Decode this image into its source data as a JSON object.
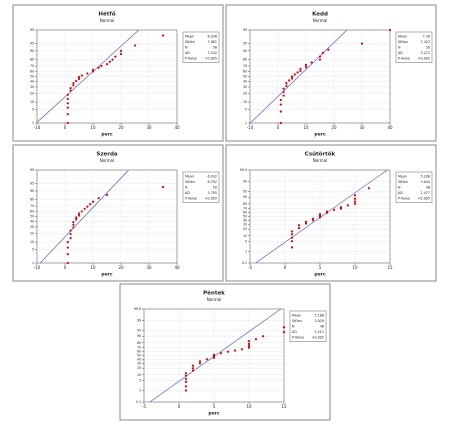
{
  "chart_data": [
    {
      "type": "probability",
      "title": "Hétfő",
      "subtitle": "Normal",
      "x_label": "perc",
      "xlim": [
        -10,
        40
      ],
      "xticks": [
        -10,
        0,
        10,
        20,
        30,
        40
      ],
      "ylim": [
        1,
        99
      ],
      "yticks": [
        1,
        5,
        10,
        20,
        30,
        40,
        50,
        60,
        70,
        80,
        90,
        95,
        99
      ],
      "color": "#e00000",
      "line_color": "#5a5aff",
      "grid": true,
      "x": [
        1,
        1,
        1,
        1,
        1,
        1,
        2,
        2,
        3,
        3,
        4,
        5,
        5,
        6,
        8,
        10,
        10,
        12,
        13,
        15,
        16,
        17,
        18,
        20,
        20,
        25,
        35
      ],
      "values": [
        1,
        3,
        6,
        9,
        13,
        18,
        24,
        28,
        33,
        37,
        41,
        45,
        49,
        52,
        56,
        60,
        63,
        67,
        70,
        73,
        77,
        80,
        84,
        87,
        90,
        94,
        98
      ],
      "stats": [
        {
          "label": "Mean",
          "value": 8.036
        },
        {
          "label": "StDev",
          "value": 7.881
        },
        {
          "label": "N",
          "value": 56
        },
        {
          "label": "AD",
          "value": 3.242
        },
        {
          "label": "P-Value",
          "value": "<0.005"
        }
      ]
    },
    {
      "type": "probability",
      "title": "Kedd",
      "subtitle": "Normal",
      "x_label": "perc",
      "xlim": [
        -10,
        40
      ],
      "xticks": [
        -10,
        0,
        10,
        20,
        30,
        40
      ],
      "ylim": [
        1,
        99
      ],
      "yticks": [
        1,
        5,
        10,
        20,
        30,
        40,
        50,
        60,
        70,
        80,
        90,
        95,
        99
      ],
      "color": "#e00000",
      "line_color": "#5a5aff",
      "grid": true,
      "x": [
        1,
        1,
        1,
        1,
        2,
        2,
        2,
        3,
        3,
        4,
        5,
        5,
        6,
        7,
        8,
        8,
        10,
        10,
        12,
        15,
        15,
        16,
        18,
        30,
        40
      ],
      "values": [
        1,
        4,
        8,
        12,
        17,
        22,
        27,
        32,
        37,
        42,
        46,
        50,
        54,
        58,
        61,
        65,
        68,
        72,
        76,
        80,
        84,
        88,
        91,
        95,
        99
      ],
      "stats": [
        {
          "label": "Mean",
          "value": 7.38
        },
        {
          "label": "StDev",
          "value": 7.423
        },
        {
          "label": "N",
          "value": 50
        },
        {
          "label": "AD",
          "value": 3.272
        },
        {
          "label": "P-Value",
          "value": "<0.005"
        }
      ]
    },
    {
      "type": "probability",
      "title": "Szerda",
      "subtitle": "Normal",
      "x_label": "perc",
      "xlim": [
        -10,
        40
      ],
      "xticks": [
        -10,
        0,
        10,
        20,
        30,
        40
      ],
      "ylim": [
        1,
        99
      ],
      "yticks": [
        1,
        5,
        10,
        20,
        30,
        40,
        50,
        60,
        70,
        80,
        90,
        95,
        99
      ],
      "color": "#e00000",
      "line_color": "#5a5aff",
      "grid": true,
      "x": [
        1,
        1,
        1,
        1,
        2,
        2,
        2,
        3,
        3,
        3,
        4,
        4,
        5,
        5,
        6,
        7,
        8,
        9,
        10,
        12,
        15,
        35
      ],
      "values": [
        1,
        3,
        6,
        10,
        14,
        19,
        24,
        29,
        34,
        39,
        44,
        48,
        52,
        56,
        60,
        65,
        69,
        73,
        77,
        82,
        86,
        93
      ],
      "stats": [
        {
          "label": "Mean",
          "value": 6.932
        },
        {
          "label": "StDev",
          "value": 6.792
        },
        {
          "label": "N",
          "value": 50
        },
        {
          "label": "AD",
          "value": 3.795
        },
        {
          "label": "P-Value",
          "value": "<0.005"
        }
      ]
    },
    {
      "type": "probability",
      "title": "Csütörtök",
      "subtitle": "Normal",
      "x_label": "perc",
      "xlim": [
        -5,
        15
      ],
      "xticks": [
        -5,
        0,
        5,
        10,
        15
      ],
      "ylim": [
        0.1,
        99.9
      ],
      "yticks": [
        0.1,
        1,
        5,
        10,
        20,
        30,
        40,
        50,
        60,
        70,
        80,
        90,
        95,
        99,
        99.9
      ],
      "color": "#e00000",
      "line_color": "#5a5aff",
      "grid": true,
      "x": [
        1,
        1,
        1,
        1,
        1,
        2,
        2,
        3,
        3,
        4,
        4,
        5,
        5,
        5,
        6,
        6,
        7,
        8,
        8,
        9,
        10,
        10,
        10,
        10,
        12
      ],
      "values": [
        2,
        5,
        8,
        12,
        16,
        22,
        28,
        32,
        36,
        40,
        44,
        48,
        52,
        56,
        60,
        63,
        67,
        70,
        73,
        77,
        80,
        84,
        88,
        92,
        97
      ],
      "stats": [
        {
          "label": "Mean",
          "value": 5.208
        },
        {
          "label": "StDev",
          "value": 3.044
        },
        {
          "label": "N",
          "value": 48
        },
        {
          "label": "AD",
          "value": 1.477
        },
        {
          "label": "P-Value",
          "value": "<0.005"
        }
      ]
    },
    {
      "type": "probability",
      "title": "Péntek",
      "subtitle": "Normal",
      "x_label": "perc",
      "xlim": [
        -5,
        15
      ],
      "xticks": [
        -5,
        0,
        5,
        10,
        15
      ],
      "ylim": [
        0.1,
        99.9
      ],
      "yticks": [
        0.1,
        1,
        5,
        10,
        20,
        30,
        40,
        50,
        60,
        70,
        80,
        90,
        95,
        99,
        99.9
      ],
      "color": "#e00000",
      "line_color": "#5a5aff",
      "grid": true,
      "x": [
        1,
        1,
        1,
        1,
        1,
        1,
        2,
        2,
        2,
        3,
        3,
        4,
        5,
        5,
        5,
        6,
        7,
        8,
        9,
        10,
        10,
        10,
        10,
        11,
        12,
        15,
        15
      ],
      "values": [
        1,
        2,
        4,
        6,
        9,
        12,
        16,
        20,
        25,
        30,
        35,
        40,
        44,
        48,
        52,
        56,
        60,
        63,
        66,
        70,
        74,
        78,
        83,
        86,
        90,
        94,
        97
      ],
      "stats": [
        {
          "label": "Mean",
          "value": 5.188
        },
        {
          "label": "StDev",
          "value": 3.029
        },
        {
          "label": "N",
          "value": 48
        },
        {
          "label": "AD",
          "value": 4.211
        },
        {
          "label": "P-Value",
          "value": "<0.005"
        }
      ]
    }
  ]
}
